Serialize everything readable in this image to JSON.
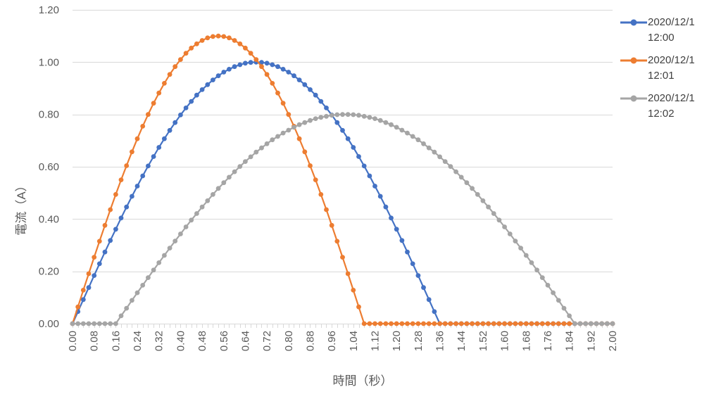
{
  "chart": {
    "background": "#FFFFFF",
    "grid_color": "#D9D9D9",
    "axis_color": "#D9D9D9",
    "label_color": "#595959",
    "legend_text_color": "#404040",
    "x_axis": {
      "title": "時間（秒）",
      "min": 0,
      "max": 2.0,
      "tick_step": 0.08,
      "minor_tick_step": 0.02,
      "tick_labels": [
        "0.00",
        "0.08",
        "0.16",
        "0.24",
        "0.32",
        "0.40",
        "0.48",
        "0.56",
        "0.64",
        "0.72",
        "0.80",
        "0.88",
        "0.96",
        "1.04",
        "1.12",
        "1.20",
        "1.28",
        "1.36",
        "1.44",
        "1.52",
        "1.60",
        "1.68",
        "1.76",
        "1.84",
        "1.92",
        "2.00"
      ]
    },
    "y_axis": {
      "title": "電流（A）",
      "min": 0,
      "max": 1.2,
      "tick_step": 0.2,
      "tick_labels": [
        "0.00",
        "0.20",
        "0.40",
        "0.60",
        "0.80",
        "1.00",
        "1.20"
      ]
    },
    "legend": {
      "position": "right",
      "entries": [
        {
          "line1": "2020/12/1",
          "line2": "12:00",
          "color": "#4472C4"
        },
        {
          "line1": "2020/12/1",
          "line2": "12:01",
          "color": "#ED7D31"
        },
        {
          "line1": "2020/12/1",
          "line2": "12:02",
          "color": "#A5A5A5"
        }
      ]
    }
  },
  "chart_data": {
    "type": "line",
    "title": "",
    "xlabel": "時間（秒）",
    "ylabel": "電流（A）",
    "xlim": [
      0,
      2.0
    ],
    "ylim": [
      0,
      1.2
    ],
    "grid": "horizontal",
    "legend_position": "right",
    "marker": "circle",
    "x": {
      "start": 0,
      "step": 0.02,
      "count": 101
    },
    "series": [
      {
        "name": "2020/12/1 12:00",
        "color": "#4472C4",
        "shape": "half-sine, amplitude 1.00, zero at t=0.00 and t=1.36, peak at t=0.68",
        "values": [
          0,
          0.046,
          0.092,
          0.138,
          0.184,
          0.229,
          0.274,
          0.318,
          0.361,
          0.404,
          0.446,
          0.487,
          0.526,
          0.565,
          0.603,
          0.639,
          0.674,
          0.707,
          0.739,
          0.769,
          0.798,
          0.825,
          0.85,
          0.874,
          0.895,
          0.914,
          0.932,
          0.948,
          0.962,
          0.973,
          0.983,
          0.99,
          0.996,
          0.999,
          1,
          0.999,
          0.996,
          0.99,
          0.983,
          0.973,
          0.962,
          0.948,
          0.932,
          0.914,
          0.895,
          0.874,
          0.85,
          0.825,
          0.798,
          0.769,
          0.739,
          0.707,
          0.674,
          0.639,
          0.603,
          0.565,
          0.526,
          0.487,
          0.446,
          0.404,
          0.361,
          0.318,
          0.274,
          0.229,
          0.184,
          0.138,
          0.092,
          0.046,
          0,
          0,
          0,
          0,
          0,
          0,
          0,
          0,
          0,
          0,
          0,
          0,
          0,
          0,
          0,
          0,
          0,
          0,
          0,
          0,
          0,
          0,
          0,
          0,
          0,
          0,
          0,
          0,
          0,
          0,
          0,
          0,
          0
        ]
      },
      {
        "name": "2020/12/1 12:01",
        "color": "#ED7D31",
        "shape": "half-sine, amplitude 1.10, zero at t=0.00 and t=1.08, peak at t=0.54",
        "values": [
          0,
          0.064,
          0.128,
          0.191,
          0.254,
          0.315,
          0.376,
          0.436,
          0.494,
          0.55,
          0.604,
          0.657,
          0.707,
          0.755,
          0.8,
          0.843,
          0.882,
          0.919,
          0.953,
          0.983,
          1.01,
          1.034,
          1.054,
          1.07,
          1.083,
          1.093,
          1.098,
          1.1,
          1.098,
          1.093,
          1.083,
          1.07,
          1.054,
          1.034,
          1.01,
          0.983,
          0.953,
          0.919,
          0.882,
          0.843,
          0.8,
          0.755,
          0.707,
          0.657,
          0.604,
          0.55,
          0.494,
          0.436,
          0.376,
          0.315,
          0.254,
          0.191,
          0.128,
          0.064,
          0,
          0,
          0,
          0,
          0,
          0,
          0,
          0,
          0,
          0,
          0,
          0,
          0,
          0,
          0,
          0,
          0,
          0,
          0,
          0,
          0,
          0,
          0,
          0,
          0,
          0,
          0,
          0,
          0,
          0,
          0,
          0,
          0,
          0,
          0,
          0,
          0,
          0,
          0,
          0,
          0,
          0,
          0,
          0,
          0,
          0,
          0
        ]
      },
      {
        "name": "2020/12/1 12:02",
        "color": "#A5A5A5",
        "shape": "half-sine, amplitude 0.80, zero at t=0.16 and t=1.86, peak at t=1.01",
        "values": [
          0,
          0,
          0,
          0,
          0,
          0,
          0,
          0,
          0,
          0.03,
          0.059,
          0.089,
          0.118,
          0.147,
          0.176,
          0.205,
          0.233,
          0.261,
          0.289,
          0.316,
          0.343,
          0.37,
          0.396,
          0.421,
          0.446,
          0.47,
          0.494,
          0.517,
          0.539,
          0.56,
          0.581,
          0.601,
          0.62,
          0.638,
          0.656,
          0.672,
          0.688,
          0.703,
          0.716,
          0.729,
          0.74,
          0.751,
          0.761,
          0.769,
          0.777,
          0.784,
          0.789,
          0.793,
          0.797,
          0.799,
          0.8,
          0.8,
          0.799,
          0.797,
          0.793,
          0.789,
          0.784,
          0.777,
          0.769,
          0.761,
          0.751,
          0.74,
          0.729,
          0.716,
          0.703,
          0.688,
          0.672,
          0.656,
          0.638,
          0.62,
          0.601,
          0.581,
          0.56,
          0.539,
          0.517,
          0.494,
          0.47,
          0.446,
          0.421,
          0.396,
          0.37,
          0.343,
          0.316,
          0.289,
          0.261,
          0.233,
          0.205,
          0.176,
          0.147,
          0.118,
          0.089,
          0.059,
          0.03,
          0,
          0,
          0,
          0,
          0,
          0,
          0,
          0
        ]
      }
    ]
  }
}
